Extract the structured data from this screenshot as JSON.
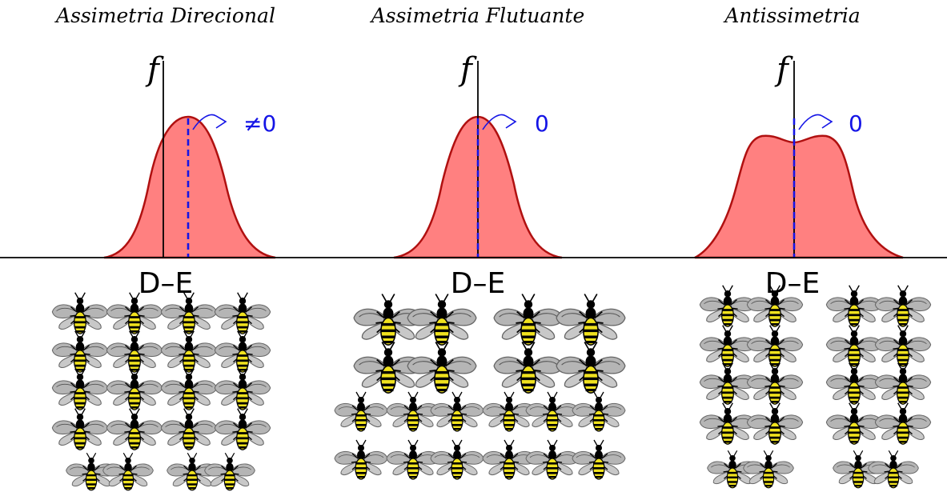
{
  "panels": [
    {
      "title": "Assimetria Direcional",
      "axis_label": "f",
      "mean_label": "≠0",
      "xlabel": "D–E",
      "shape": "shifted"
    },
    {
      "title": "Assimetria Flutuante",
      "axis_label": "f",
      "mean_label": "0",
      "xlabel": "D–E",
      "shape": "centered"
    },
    {
      "title": "Antissimetria",
      "axis_label": "f",
      "mean_label": "0",
      "xlabel": "D–E",
      "shape": "bimodal"
    }
  ],
  "colors": {
    "distribution_fill": "#ff8080",
    "distribution_stroke": "#b01010",
    "mean_line": "#1414e6"
  },
  "icons": [
    "bee-icon"
  ]
}
